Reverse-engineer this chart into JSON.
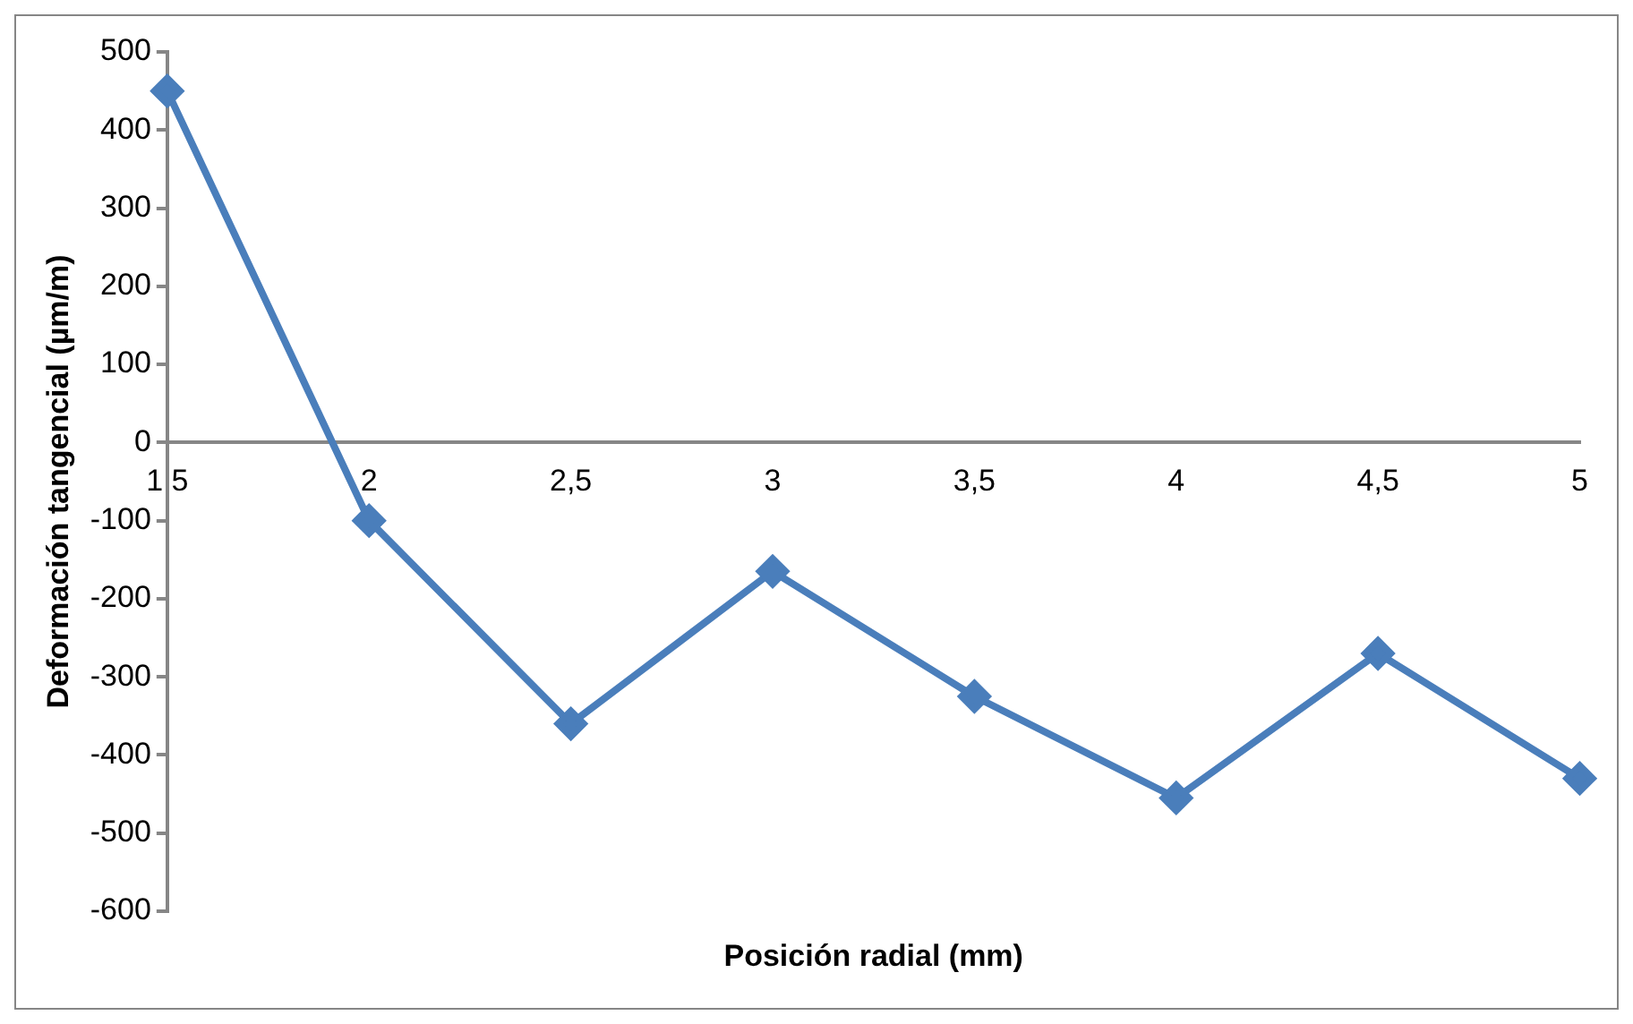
{
  "chart_data": {
    "type": "line",
    "xlabel": "Posición radial (mm)",
    "ylabel": "Deformación tangencial (µm/m)",
    "categories": [
      "1,5",
      "2",
      "2,5",
      "3",
      "3,5",
      "4",
      "4,5",
      "5"
    ],
    "series": [
      {
        "color": "#4a7ebb",
        "values": [
          450,
          -100,
          -360,
          -165,
          -325,
          -455,
          -270,
          -430
        ]
      }
    ],
    "ylim": [
      -600,
      500
    ],
    "yticks": [
      -600,
      -500,
      -400,
      -300,
      -200,
      -100,
      0,
      100,
      200,
      300,
      400,
      500
    ],
    "grid": false,
    "legend": false,
    "marker": "diamond",
    "line_style": "solid"
  }
}
